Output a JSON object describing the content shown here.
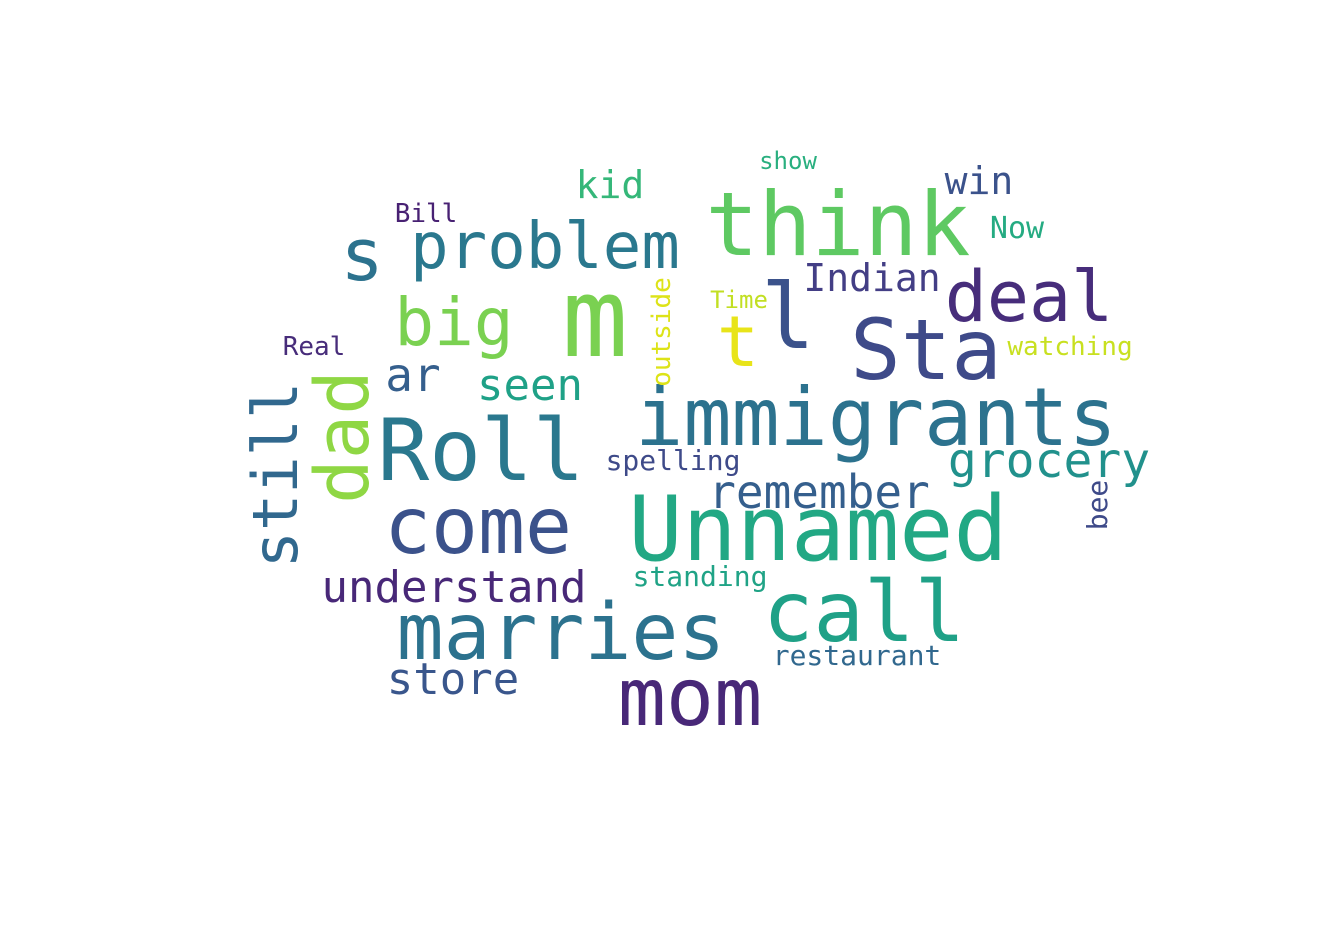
{
  "words": [
    {
      "text": "m",
      "color": "#7ad151"
    },
    {
      "text": "think",
      "color": "#5ec962"
    },
    {
      "text": "immigrants",
      "color": "#2c728e"
    },
    {
      "text": "Unnamed",
      "color": "#22a884"
    },
    {
      "text": "Roll",
      "color": "#2a788e"
    },
    {
      "text": "marries",
      "color": "#2c728e"
    },
    {
      "text": "mom",
      "color": "#482878"
    },
    {
      "text": "come",
      "color": "#3b528b"
    },
    {
      "text": "call",
      "color": "#1fa187"
    },
    {
      "text": "problem",
      "color": "#2a788e"
    },
    {
      "text": "Sta",
      "color": "#3e4a89"
    },
    {
      "text": "deal",
      "color": "#472d7b"
    },
    {
      "text": "dad",
      "color": "#8fd744"
    },
    {
      "text": "still",
      "color": "#31688e"
    },
    {
      "text": "big",
      "color": "#7ad151"
    },
    {
      "text": "s",
      "color": "#2c728e"
    },
    {
      "text": "l",
      "color": "#3b528b"
    },
    {
      "text": "t",
      "color": "#e8e419"
    },
    {
      "text": "grocery",
      "color": "#21918c"
    },
    {
      "text": "remember",
      "color": "#355f8d"
    },
    {
      "text": "understand",
      "color": "#482878"
    },
    {
      "text": "store",
      "color": "#39568c"
    },
    {
      "text": "seen",
      "color": "#1fa187"
    },
    {
      "text": "ar",
      "color": "#355f8d"
    },
    {
      "text": "kid",
      "color": "#35b779"
    },
    {
      "text": "Indian",
      "color": "#433e85"
    },
    {
      "text": "win",
      "color": "#3b528b"
    },
    {
      "text": "spelling",
      "color": "#3e4a89"
    },
    {
      "text": "standing",
      "color": "#20a386"
    },
    {
      "text": "restaurant",
      "color": "#31688e"
    },
    {
      "text": "outside",
      "color": "#dde318"
    },
    {
      "text": "Now",
      "color": "#25ab82"
    },
    {
      "text": "Time",
      "color": "#c2df23"
    },
    {
      "text": "watching",
      "color": "#c8e020"
    },
    {
      "text": "show",
      "color": "#29af7f"
    },
    {
      "text": "Bill",
      "color": "#482173"
    },
    {
      "text": "Real",
      "color": "#472c7a"
    },
    {
      "text": "bee",
      "color": "#3e4a89"
    }
  ]
}
